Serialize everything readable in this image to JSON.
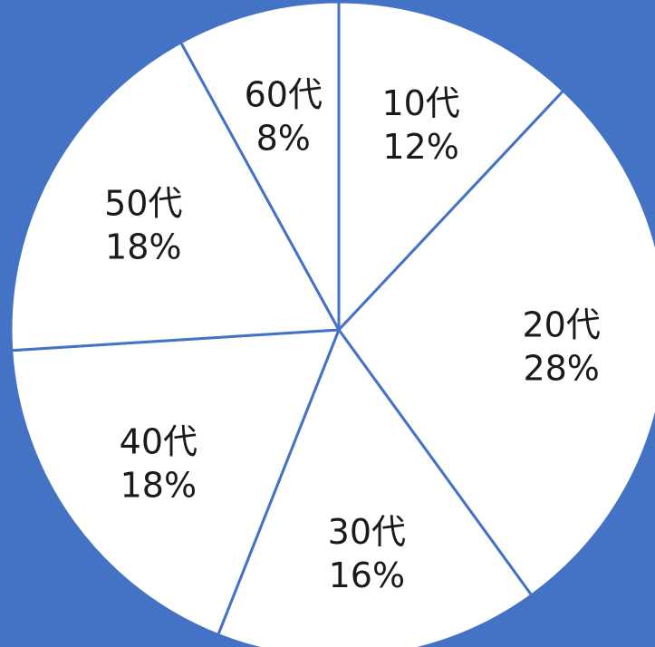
{
  "colors": {
    "background": "#4472C4",
    "slice_fill": "#FFFFFF",
    "slice_border": "#4472C4",
    "label_text": "#1A1A1A"
  },
  "chart_data": {
    "type": "pie",
    "title": "",
    "start_angle_deg": 0,
    "direction": "clockwise",
    "legend": "none",
    "categories": [
      "10代",
      "20代",
      "30代",
      "40代",
      "50代",
      "60代"
    ],
    "values": [
      12,
      28,
      16,
      18,
      18,
      8
    ],
    "value_labels": [
      "12%",
      "28%",
      "16%",
      "18%",
      "18%",
      "8%"
    ]
  }
}
